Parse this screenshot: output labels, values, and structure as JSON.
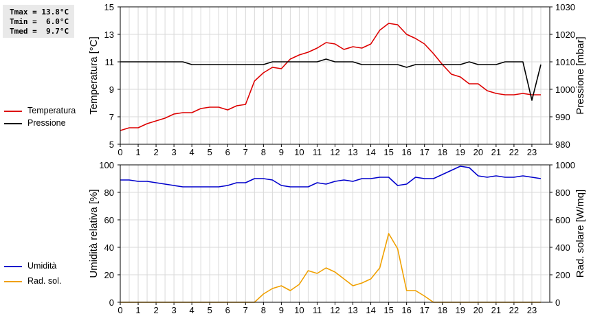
{
  "stats": {
    "tmax": "Tmax = 13.8°C",
    "tmin": "Tmin =  6.0°C",
    "tmed": "Tmed =  9.7°C"
  },
  "chart_data": [
    {
      "type": "line",
      "ylabel": "Temperatura [°C]",
      "y2label": "Pressione [mbar]",
      "xlim": [
        0,
        24
      ],
      "xticks": [
        "0",
        "1",
        "2",
        "3",
        "4",
        "5",
        "6",
        "7",
        "8",
        "9",
        "10",
        "11",
        "12",
        "13",
        "14",
        "15",
        "16",
        "17",
        "18",
        "19",
        "20",
        "21",
        "22",
        "23"
      ],
      "ylim": [
        5,
        15
      ],
      "yticks": [
        "5",
        "7",
        "9",
        "11",
        "13",
        "15"
      ],
      "y2lim": [
        980,
        1030
      ],
      "y2ticks": [
        "980",
        "990",
        "1000",
        "1010",
        "1020",
        "1030"
      ],
      "grid": true,
      "legend_position": "left",
      "series": [
        {
          "name": "Temperatura",
          "axis": "left",
          "color": "#dd0000",
          "x": [
            0,
            0.5,
            1,
            1.5,
            2,
            2.5,
            3,
            3.5,
            4,
            4.5,
            5,
            5.5,
            6,
            6.5,
            7,
            7.5,
            8,
            8.5,
            9,
            9.5,
            10,
            10.5,
            11,
            11.5,
            12,
            12.5,
            13,
            13.5,
            14,
            14.5,
            15,
            15.5,
            16,
            16.5,
            17,
            17.5,
            18,
            18.5,
            19,
            19.5,
            20,
            20.5,
            21,
            21.5,
            22,
            22.5,
            23,
            23.5
          ],
          "values": [
            6.0,
            6.2,
            6.2,
            6.5,
            6.7,
            6.9,
            7.2,
            7.3,
            7.3,
            7.6,
            7.7,
            7.7,
            7.5,
            7.8,
            7.9,
            9.6,
            10.2,
            10.6,
            10.5,
            11.2,
            11.5,
            11.7,
            12.0,
            12.4,
            12.3,
            11.9,
            12.1,
            12.0,
            12.3,
            13.3,
            13.8,
            13.7,
            13.0,
            12.7,
            12.3,
            11.6,
            10.8,
            10.1,
            9.9,
            9.4,
            9.4,
            8.9,
            8.7,
            8.6,
            8.6,
            8.7,
            8.6,
            8.6
          ]
        },
        {
          "name": "Pressione",
          "axis": "right",
          "color": "#000000",
          "x": [
            0,
            0.5,
            1,
            1.5,
            2,
            2.5,
            3,
            3.5,
            4,
            4.5,
            5,
            5.5,
            6,
            6.5,
            7,
            7.5,
            8,
            8.5,
            9,
            9.5,
            10,
            10.5,
            11,
            11.5,
            12,
            12.5,
            13,
            13.5,
            14,
            14.5,
            15,
            15.5,
            16,
            16.5,
            17,
            17.5,
            18,
            18.5,
            19,
            19.5,
            20,
            20.5,
            21,
            21.5,
            22,
            22.5,
            23,
            23.5
          ],
          "values": [
            1010,
            1010,
            1010,
            1010,
            1010,
            1010,
            1010,
            1010,
            1009,
            1009,
            1009,
            1009,
            1009,
            1009,
            1009,
            1009,
            1009,
            1010,
            1010,
            1010,
            1010,
            1010,
            1010,
            1011,
            1010,
            1010,
            1010,
            1009,
            1009,
            1009,
            1009,
            1009,
            1008,
            1009,
            1009,
            1009,
            1009,
            1009,
            1009,
            1010,
            1009,
            1009,
            1009,
            1010,
            1010,
            1010,
            996,
            1009
          ]
        }
      ]
    },
    {
      "type": "line",
      "ylabel": "Umidità relativa [%]",
      "y2label": "Rad. solare [W/mq]",
      "xlim": [
        0,
        24
      ],
      "xticks": [
        "0",
        "1",
        "2",
        "3",
        "4",
        "5",
        "6",
        "7",
        "8",
        "9",
        "10",
        "11",
        "12",
        "13",
        "14",
        "15",
        "16",
        "17",
        "18",
        "19",
        "20",
        "21",
        "22",
        "23"
      ],
      "ylim": [
        0,
        100
      ],
      "yticks": [
        "0",
        "20",
        "40",
        "60",
        "80",
        "100"
      ],
      "y2lim": [
        0,
        1000
      ],
      "y2ticks": [
        "0",
        "200",
        "400",
        "600",
        "800",
        "1000"
      ],
      "grid": true,
      "legend_position": "left",
      "series": [
        {
          "name": "Umidità",
          "axis": "left",
          "color": "#0000cc",
          "x": [
            0,
            0.5,
            1,
            1.5,
            2,
            2.5,
            3,
            3.5,
            4,
            4.5,
            5,
            5.5,
            6,
            6.5,
            7,
            7.5,
            8,
            8.5,
            9,
            9.5,
            10,
            10.5,
            11,
            11.5,
            12,
            12.5,
            13,
            13.5,
            14,
            14.5,
            15,
            15.5,
            16,
            16.5,
            17,
            17.5,
            18,
            18.5,
            19,
            19.5,
            20,
            20.5,
            21,
            21.5,
            22,
            22.5,
            23,
            23.5
          ],
          "values": [
            89,
            89,
            88,
            88,
            87,
            86,
            85,
            84,
            84,
            84,
            84,
            84,
            85,
            87,
            87,
            90,
            90,
            89,
            85,
            84,
            84,
            84,
            87,
            86,
            88,
            89,
            88,
            90,
            90,
            91,
            91,
            85,
            86,
            91,
            90,
            90,
            93,
            96,
            99,
            98,
            92,
            91,
            92,
            91,
            91,
            92,
            91,
            90
          ]
        },
        {
          "name": "Rad. sol.",
          "axis": "right",
          "color": "#f0a000",
          "x": [
            0,
            0.5,
            1,
            1.5,
            2,
            2.5,
            3,
            3.5,
            4,
            4.5,
            5,
            5.5,
            6,
            6.5,
            7,
            7.5,
            8,
            8.5,
            9,
            9.5,
            10,
            10.5,
            11,
            11.5,
            12,
            12.5,
            13,
            13.5,
            14,
            14.5,
            15,
            15.5,
            16,
            16.5,
            17,
            17.5,
            18,
            18.5,
            19,
            19.5,
            20,
            20.5,
            21,
            21.5,
            22,
            22.5,
            23,
            23.5
          ],
          "values": [
            0,
            0,
            0,
            0,
            0,
            0,
            0,
            0,
            0,
            0,
            0,
            0,
            0,
            0,
            0,
            0,
            60,
            100,
            120,
            85,
            130,
            230,
            210,
            250,
            220,
            170,
            120,
            140,
            170,
            250,
            500,
            390,
            85,
            85,
            45,
            0,
            0,
            0,
            0,
            0,
            0,
            0,
            0,
            0,
            0,
            0,
            0,
            0
          ]
        }
      ]
    }
  ]
}
